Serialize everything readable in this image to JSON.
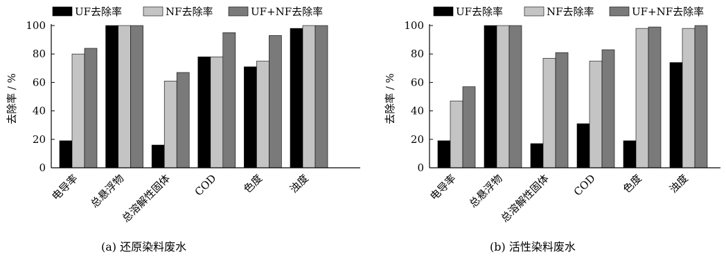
{
  "colors": {
    "UF": "#000000",
    "NF": "#c4c4c4",
    "UFNF": "#7a7a7a"
  },
  "chart_data": [
    {
      "type": "bar",
      "title": "",
      "caption": "(a) 还原染料废水",
      "ylabel": "去除率 / %",
      "xlabel": "",
      "ylim": [
        0,
        100
      ],
      "yticks": [
        0,
        20,
        40,
        60,
        80,
        100
      ],
      "grid": false,
      "legend": "top",
      "categories": [
        "电导率",
        "总悬浮物",
        "总溶解性固体",
        "COD",
        "色度",
        "浊度"
      ],
      "series": [
        {
          "name": "UF去除率",
          "values": [
            19,
            100,
            16,
            78,
            71,
            98
          ]
        },
        {
          "name": "NF去除率",
          "values": [
            80,
            100,
            61,
            78,
            75,
            100
          ]
        },
        {
          "name": "UF+NF去除率",
          "values": [
            84,
            100,
            67,
            95,
            93,
            100
          ]
        }
      ]
    },
    {
      "type": "bar",
      "title": "",
      "caption": "(b) 活性染料废水",
      "ylabel": "去除率 / %",
      "xlabel": "",
      "ylim": [
        0,
        100
      ],
      "yticks": [
        0,
        20,
        40,
        60,
        80,
        100
      ],
      "grid": false,
      "legend": "top",
      "categories": [
        "电导率",
        "总悬浮物",
        "总溶解性固体",
        "COD",
        "色度",
        "浊度"
      ],
      "series": [
        {
          "name": "UF去除率",
          "values": [
            19,
            100,
            17,
            31,
            19,
            74
          ]
        },
        {
          "name": "NF去除率",
          "values": [
            47,
            100,
            77,
            75,
            98,
            98
          ]
        },
        {
          "name": "UF+NF去除率",
          "values": [
            57,
            100,
            81,
            83,
            99,
            100
          ]
        }
      ]
    }
  ]
}
